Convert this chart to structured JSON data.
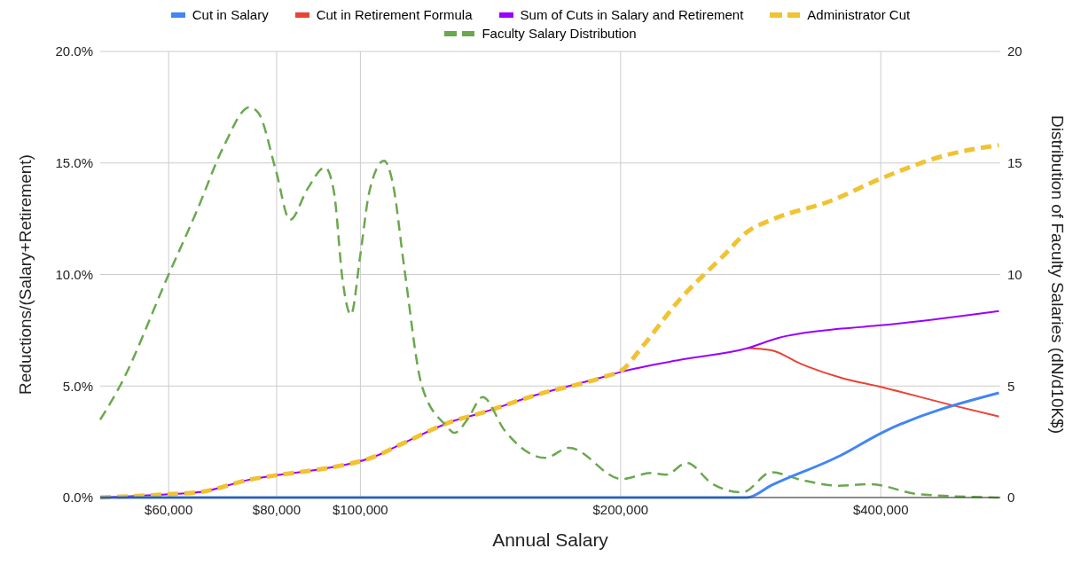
{
  "chart_data": {
    "type": "line",
    "xlabel": "Annual Salary",
    "ylabel": "Reductions/(Salary+Retirement)",
    "y2label": "Distribution of Faculty Salaries (dN/d10K$)",
    "log": "x",
    "grid": true,
    "legend": "top",
    "marker": "none",
    "xlim": [
      50000,
      550000
    ],
    "xticks": [
      {
        "value": 60000,
        "label": "$60,000"
      },
      {
        "value": 80000,
        "label": "$80,000"
      },
      {
        "value": 100000,
        "label": "$100,000"
      },
      {
        "value": 200000,
        "label": "$200,000"
      },
      {
        "value": 400000,
        "label": "$400,000"
      }
    ],
    "ylim": [
      0,
      20
    ],
    "yticks": [
      {
        "value": 0,
        "label": "0.0%"
      },
      {
        "value": 5,
        "label": "5.0%"
      },
      {
        "value": 10,
        "label": "10.0%"
      },
      {
        "value": 15,
        "label": "15.0%"
      },
      {
        "value": 20,
        "label": "20.0%"
      }
    ],
    "y2lim": [
      0,
      20
    ],
    "y2ticks": [
      0,
      5,
      10,
      15,
      20
    ],
    "series": [
      {
        "name": "Cut in Salary",
        "color": "#4285f4",
        "line_style": "solid",
        "x": [
          50000,
          100000,
          200000,
          280000,
          299000,
          360000,
          400000,
          548000
        ],
        "values": [
          0,
          0,
          0,
          0,
          0.55,
          1.9,
          2.88,
          4.69
        ]
      },
      {
        "name": "Cut in Retirement Formula",
        "color": "#ea4335",
        "line_style": "solid",
        "x": [
          280700,
          299000,
          323000,
          360000,
          400000,
          486000,
          548000
        ],
        "values": [
          6.7,
          6.6,
          6.0,
          5.37,
          4.96,
          4.12,
          3.63
        ]
      },
      {
        "name": "Sum of Cuts in Salary and Retirement",
        "color": "#9900ff",
        "line_style": "solid",
        "x": [
          50000,
          60000,
          65600,
          74400,
          80000,
          91000,
          99300,
          103300,
          111600,
          128500,
          136900,
          159800,
          192800,
          200600,
          236500,
          280700,
          304000,
          360000,
          400000,
          548000
        ],
        "values": [
          0,
          0.15,
          0.26,
          0.8,
          1.0,
          1.3,
          1.6,
          1.8,
          2.4,
          3.45,
          3.75,
          4.6,
          5.45,
          5.64,
          6.2,
          6.7,
          7.15,
          7.57,
          7.72,
          8.36
        ]
      },
      {
        "name": "Administrator Cut",
        "color": "#f1c232",
        "line_style": "dashed",
        "x": [
          50000,
          60000,
          65600,
          74400,
          80000,
          91000,
          99300,
          103300,
          111600,
          128500,
          136900,
          159800,
          192800,
          200600,
          212000,
          233000,
          264000,
          280000,
          299000,
          350000,
          400000,
          477000,
          548000
        ],
        "values": [
          0,
          0.15,
          0.26,
          0.8,
          1.0,
          1.3,
          1.6,
          1.8,
          2.4,
          3.45,
          3.75,
          4.6,
          5.45,
          5.7,
          6.77,
          8.78,
          10.9,
          11.9,
          12.45,
          13.3,
          14.3,
          15.36,
          15.8
        ]
      },
      {
        "name": "Faculty Salary Distribution",
        "color": "#6aa84f",
        "line_style": "dashed",
        "axis": "y2",
        "x": [
          50000,
          52700,
          60000,
          64600,
          69400,
          74400,
          76200,
          79800,
          82900,
          86900,
          91000,
          93200,
          95400,
          97500,
          100000,
          102400,
          106500,
          109000,
          112400,
          117800,
          125500,
          128500,
          133000,
          138500,
          146900,
          163600,
          174300,
          200600,
          216900,
          225600,
          238500,
          255700,
          276600,
          299000,
          323000,
          358000,
          389000,
          442000,
          548000
        ],
        "values": [
          3.49,
          5.0,
          10.0,
          12.8,
          15.7,
          17.5,
          17.25,
          14.7,
          12.45,
          13.85,
          14.8,
          13.7,
          9.7,
          8.2,
          10.9,
          13.7,
          15.1,
          14.1,
          10.3,
          5.0,
          3.25,
          2.9,
          3.5,
          4.5,
          3.0,
          1.78,
          2.23,
          0.83,
          1.1,
          1.02,
          1.55,
          0.6,
          0.23,
          1.13,
          0.8,
          0.53,
          0.6,
          0.15,
          0.0
        ]
      }
    ]
  }
}
